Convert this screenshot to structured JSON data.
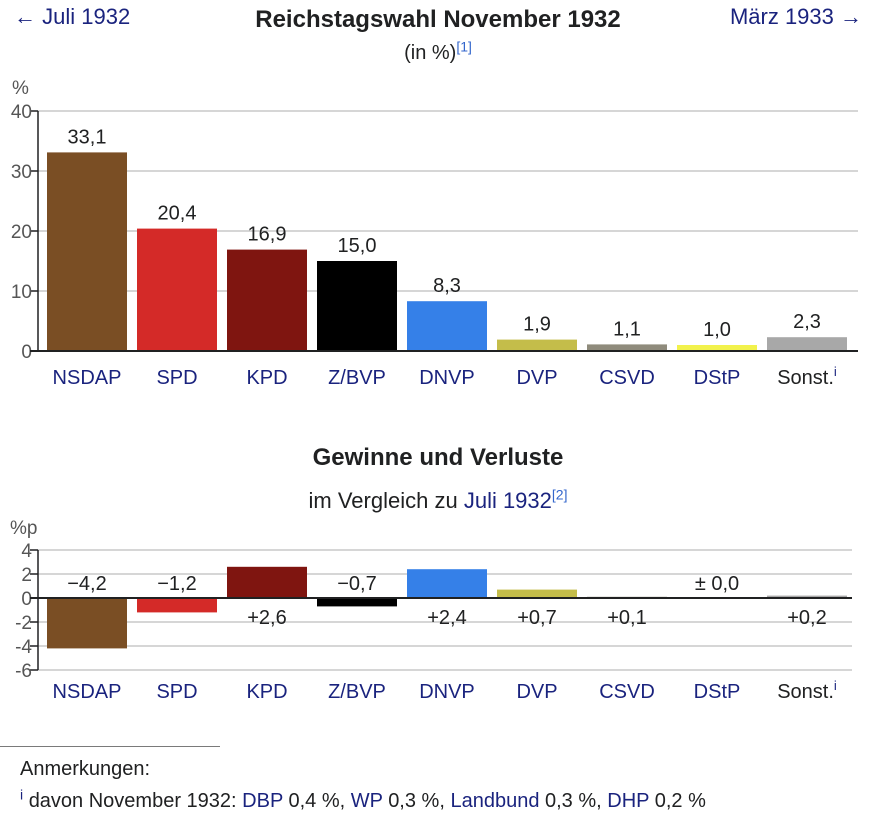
{
  "nav": {
    "prev": "← Juli 1932",
    "next": "März 1933 →"
  },
  "main_title": "Reichstagswahl November 1932",
  "main_subtitle": "(in %)",
  "main_subtitle_ref": "[1]",
  "change_title": "Gewinne und Verluste",
  "change_subtitle_pre": "im Vergleich zu",
  "change_subtitle_link": "Juli 1932",
  "change_subtitle_ref": "[2]",
  "colors": {
    "grid": "#c8c8c8",
    "axis": "#202122",
    "link": "#1a237e",
    "label_plain": "#202122"
  },
  "chart_data": [
    {
      "type": "bar",
      "title": "Reichstagswahl November 1932",
      "ylabel": "%",
      "ylim": [
        0,
        40
      ],
      "yticks": [
        "0",
        "10",
        "20",
        "30",
        "40"
      ],
      "categories": [
        "NSDAP",
        "SPD",
        "KPD",
        "Z/BVP",
        "DNVP",
        "DVP",
        "CSVD",
        "DStP",
        "Sonst."
      ],
      "category_note": "i",
      "values": [
        33.1,
        20.4,
        16.9,
        15.0,
        8.3,
        1.9,
        1.1,
        1.0,
        2.3
      ],
      "value_labels": [
        "33,1",
        "20,4",
        "16,9",
        "15,0",
        "8,3",
        "1,9",
        "1,1",
        "1,0",
        "2,3"
      ],
      "colors": [
        "#7a4e24",
        "#d42a28",
        "#7f1510",
        "#000000",
        "#3580e8",
        "#c4bd4a",
        "#8f8b7c",
        "#f2f24c",
        "#a8a8a8"
      ],
      "grid": true
    },
    {
      "type": "bar",
      "title": "Gewinne und Verluste",
      "ylabel": "%p",
      "ylim": [
        -6,
        4
      ],
      "yticks": [
        "-6",
        "-4",
        "-2",
        "0",
        "2",
        "4"
      ],
      "categories": [
        "NSDAP",
        "SPD",
        "KPD",
        "Z/BVP",
        "DNVP",
        "DVP",
        "CSVD",
        "DStP",
        "Sonst."
      ],
      "category_note": "i",
      "values": [
        -4.2,
        -1.2,
        2.6,
        -0.7,
        2.4,
        0.7,
        0.1,
        0.0,
        0.2
      ],
      "value_labels": [
        "−4,2",
        "−1,2",
        "+2,6",
        "−0,7",
        "+2,4",
        "+0,7",
        "+0,1",
        "± 0,0",
        "+0,2"
      ],
      "colors": [
        "#7a4e24",
        "#d42a28",
        "#7f1510",
        "#000000",
        "#3580e8",
        "#c4bd4a",
        "#8f8b7c",
        "#f2f24c",
        "#a8a8a8"
      ],
      "grid": true
    }
  ],
  "notes": {
    "heading": "Anmerkungen:",
    "marker": "i",
    "prefix": "davon November 1932:",
    "items": [
      {
        "name": "DBP",
        "value": "0,4 %,"
      },
      {
        "name": "WP",
        "value": "0,3 %,"
      },
      {
        "name": "Landbund",
        "value": "0,3 %,"
      },
      {
        "name": "DHP",
        "value": "0,2 %"
      }
    ]
  }
}
